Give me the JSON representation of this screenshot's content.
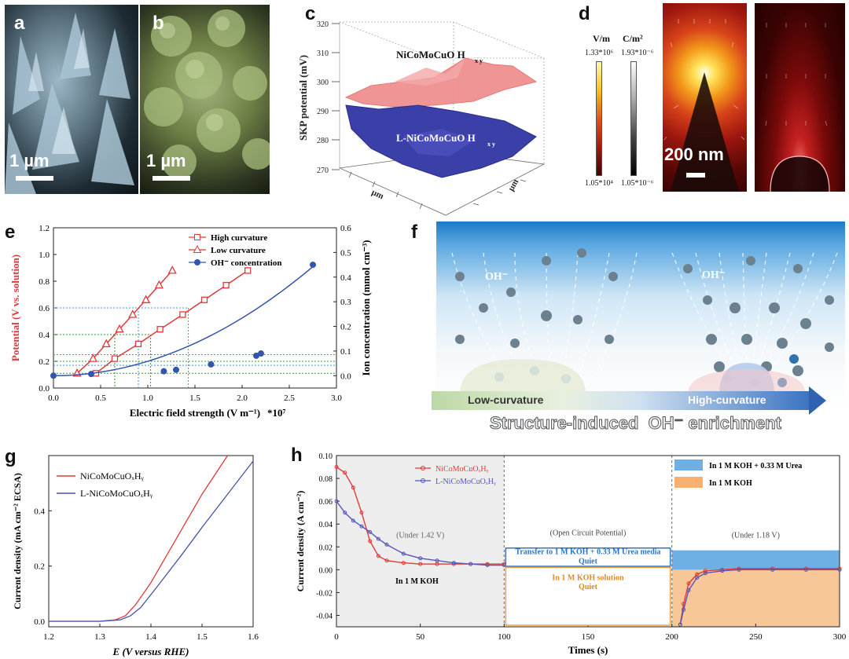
{
  "panels": {
    "a": {
      "label": "a",
      "scale": "1 µm"
    },
    "b": {
      "label": "b",
      "scale": "1 µm"
    },
    "c": {
      "label": "c",
      "zlabel": "SKP potential (mV)",
      "zticks": [
        "320",
        "310",
        "300",
        "290",
        "280",
        "270"
      ],
      "top_label": "NiCoMoCuO H",
      "top_sub": "x  y",
      "bottom_label": "L-NiCoMoCuO H",
      "bottom_sub": "x  y",
      "xunit": "µm",
      "yunit": "µm"
    },
    "d": {
      "label": "d",
      "cb1_unit": "V/m",
      "cb1_max": "1.33*10⁶",
      "cb1_min": "1.05*10⁴",
      "cb2_unit": "C/m²",
      "cb2_max": "1.93*10⁻⁶",
      "cb2_min": "1.05*10⁻⁶",
      "scale": "200 nm"
    },
    "e": {
      "label": "e",
      "legend": [
        "High curvature",
        "Low curvature",
        "OH⁻ concentration"
      ],
      "xlabel": "Electric field strength (V m⁻¹)",
      "xmult": "*10⁷",
      "ylabel": "Potential (V vs. solution)",
      "y2label": "Ion concentration (mmol cm⁻³)"
    },
    "f": {
      "label": "f",
      "oh1": "OH⁻",
      "oh2": "OH⁻",
      "low": "Low-curvature",
      "high": "High-curvature",
      "caption": "Structure-induced  OH⁻ enrichment"
    },
    "g": {
      "label": "g",
      "legend": [
        "NiCoMoCuOₓHᵧ",
        "L-NiCoMoCuOₓHᵧ"
      ],
      "xlabel": "E (V versus RHE)",
      "ylabel": "Current density (mA cm⁻² ECSA)"
    },
    "h": {
      "label": "h",
      "legend": [
        "NiCoMoCuOₓHᵧ",
        "L-NiCoMoCuOₓHᵧ"
      ],
      "legend2": [
        "In 1 M KOH + 0.33 M Urea",
        "In 1 M KOH"
      ],
      "xlabel": "Times (s)",
      "ylabel": "Current density (A cm⁻²)",
      "under1": "(Under 1.42 V)",
      "ocp": "(Open Circuit Potential)",
      "under2": "(Under 1.18 V)",
      "in_koh": "In 1 M KOH",
      "box1": [
        "Transfer to 1 M KOH + 0.33 M Urea media",
        "Quiet"
      ],
      "box2": [
        "In 1 M KOH solution",
        "Quiet"
      ]
    }
  },
  "chart_data": [
    {
      "type": "line",
      "panel": "e",
      "xlabel": "Electric field strength (V m⁻¹)",
      "ylabel": "Potential (V vs. solution)",
      "y2label": "Ion concentration (mmol cm⁻³)",
      "xlim": [
        0.0,
        3.0
      ],
      "ylim": [
        0.0,
        1.2
      ],
      "y2lim": [
        -0.05,
        0.6
      ],
      "xticks": [
        "0.0",
        "0.5",
        "1.0",
        "1.5",
        "2.0",
        "2.5",
        "3.0"
      ],
      "yticks": [
        "0.0",
        "0.2",
        "0.4",
        "0.6",
        "0.8",
        "1.0",
        "1.2"
      ],
      "y2ticks": [
        "0.0",
        "0.1",
        "0.2",
        "0.3",
        "0.4",
        "0.5",
        "0.6"
      ],
      "series": [
        {
          "name": "High curvature",
          "color": "#e03a3a",
          "marker": "square",
          "x": [
            0.45,
            0.65,
            0.9,
            1.13,
            1.37,
            1.6,
            1.83,
            2.06
          ],
          "y": [
            0.11,
            0.22,
            0.33,
            0.44,
            0.55,
            0.66,
            0.77,
            0.88
          ]
        },
        {
          "name": "Low curvature",
          "color": "#e03a3a",
          "marker": "triangle",
          "x": [
            0.25,
            0.42,
            0.56,
            0.7,
            0.84,
            0.98,
            1.12,
            1.26
          ],
          "y": [
            0.11,
            0.22,
            0.33,
            0.44,
            0.55,
            0.66,
            0.77,
            0.88
          ]
        },
        {
          "name": "OH⁻ concentration",
          "color": "#3355aa",
          "marker": "circle",
          "axis": "y2",
          "x": [
            0.0,
            0.4,
            1.17,
            1.3,
            1.67,
            2.15,
            2.2,
            2.75
          ],
          "y": [
            0.0,
            0.007,
            0.018,
            0.024,
            0.046,
            0.081,
            0.09,
            0.45
          ]
        }
      ]
    },
    {
      "type": "line",
      "panel": "g",
      "xlabel": "E (V versus RHE)",
      "ylabel": "Current density (mA cm⁻² ECSA)",
      "xlim": [
        1.2,
        1.6
      ],
      "ylim": [
        -0.02,
        0.6
      ],
      "xticks": [
        "1.2",
        "1.3",
        "1.4",
        "1.5",
        "1.6"
      ],
      "yticks": [
        "0.0",
        "0.2",
        "0.4"
      ],
      "series": [
        {
          "name": "NiCoMoCuOₓHᵧ",
          "color": "#e03a3a",
          "x": [
            1.2,
            1.3,
            1.33,
            1.35,
            1.37,
            1.4,
            1.45,
            1.5,
            1.55
          ],
          "y": [
            0.0,
            0.0,
            0.005,
            0.02,
            0.06,
            0.14,
            0.3,
            0.46,
            0.6
          ]
        },
        {
          "name": "L-NiCoMoCuOₓHᵧ",
          "color": "#4455aa",
          "x": [
            1.2,
            1.3,
            1.34,
            1.36,
            1.38,
            1.41,
            1.46,
            1.5,
            1.55,
            1.6
          ],
          "y": [
            0.0,
            0.0,
            0.005,
            0.02,
            0.05,
            0.12,
            0.24,
            0.34,
            0.46,
            0.58
          ]
        }
      ]
    },
    {
      "type": "line",
      "panel": "h",
      "xlabel": "Times (s)",
      "ylabel": "Current density (A cm⁻²)",
      "xlim": [
        0,
        300
      ],
      "ylim": [
        -0.05,
        0.1
      ],
      "xticks": [
        "0",
        "50",
        "100",
        "150",
        "200",
        "250",
        "300"
      ],
      "yticks": [
        "0.10",
        "0.08",
        "0.06",
        "0.04",
        "0.02",
        "0.00",
        "-0.02",
        "-0.04"
      ],
      "series": [
        {
          "name": "NiCoMoCuOₓHᵧ",
          "color": "#e03a3a",
          "x": [
            0,
            5,
            10,
            15,
            20,
            25,
            30,
            40,
            50,
            60,
            70,
            80,
            90,
            100
          ],
          "y": [
            0.09,
            0.085,
            0.072,
            0.05,
            0.025,
            0.012,
            0.008,
            0.006,
            0.005,
            0.005,
            0.005,
            0.005,
            0.005,
            0.005
          ]
        },
        {
          "name": "L-NiCoMoCuOₓHᵧ",
          "color": "#5555bb",
          "x": [
            0,
            5,
            10,
            15,
            20,
            25,
            30,
            40,
            50,
            60,
            70,
            80,
            90,
            100
          ],
          "y": [
            0.06,
            0.05,
            0.043,
            0.038,
            0.033,
            0.027,
            0.022,
            0.014,
            0.01,
            0.008,
            0.006,
            0.005,
            0.004,
            0.004
          ]
        },
        {
          "name": "NiCoMoCuOₓHᵧ (1.18 V)",
          "color": "#e03a3a",
          "x": [
            205,
            207,
            210,
            215,
            220,
            230,
            240,
            260,
            280,
            300
          ],
          "y": [
            -0.048,
            -0.03,
            -0.012,
            -0.004,
            -0.001,
            0.0,
            0.001,
            0.001,
            0.001,
            0.001
          ]
        },
        {
          "name": "L-NiCoMoCuOₓHᵧ (1.18 V)",
          "color": "#5555bb",
          "x": [
            205,
            207,
            210,
            215,
            220,
            230,
            240,
            260,
            280,
            300
          ],
          "y": [
            -0.048,
            -0.035,
            -0.018,
            -0.007,
            -0.003,
            -0.001,
            0.0,
            0.0,
            0.0,
            0.0
          ]
        }
      ]
    }
  ]
}
